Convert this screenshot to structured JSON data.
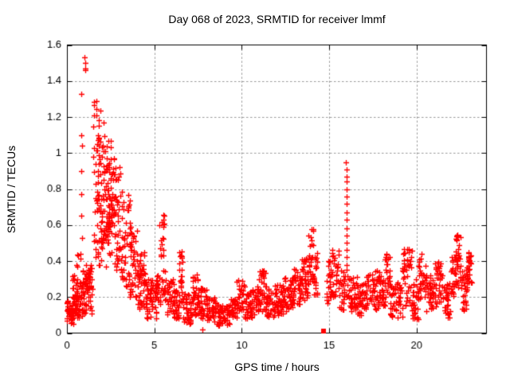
{
  "chart_data": {
    "type": "scatter",
    "title": "Day 068 of 2023, SRMTID for receiver lmmf",
    "xlabel": "GPS time / hours",
    "ylabel": "SRMTID / TECUs",
    "xlim": [
      0,
      24
    ],
    "ylim": [
      0,
      1.6
    ],
    "xticks": {
      "values": [
        0,
        5,
        10,
        15,
        20
      ],
      "labels": [
        "0",
        "5",
        "10",
        "15",
        "20"
      ]
    },
    "yticks": {
      "values": [
        0,
        0.2,
        0.4,
        0.6,
        0.8,
        1.0,
        1.2,
        1.4,
        1.6
      ],
      "labels": [
        "0",
        "0.2",
        "0.4",
        "0.6",
        "0.8",
        "1",
        "1.2",
        "1.4",
        "1.6"
      ]
    },
    "grid": true,
    "legend": "none",
    "colors": {
      "marker": "#ff0000",
      "grid": "#9a9a9a",
      "axis": "#000000",
      "background": "#ffffff"
    },
    "marker": {
      "shape": "plus",
      "size": 7
    },
    "square_point": [
      14.7,
      0.01
    ],
    "low_outlier_point": [
      7.73,
      0.02
    ],
    "spike_columns": {
      "hour08_column": [
        [
          0.83,
          1.33
        ],
        [
          0.8,
          1.1
        ],
        [
          0.85,
          1.04
        ],
        [
          0.82,
          0.9
        ],
        [
          0.84,
          0.77
        ],
        [
          0.81,
          0.65
        ],
        [
          0.86,
          0.53
        ],
        [
          0.79,
          0.44
        ]
      ],
      "max_cluster": [
        [
          1.02,
          1.53
        ],
        [
          1.05,
          1.5
        ],
        [
          1.03,
          1.47
        ],
        [
          1.06,
          1.46
        ]
      ],
      "hour16_spike": [
        [
          15.97,
          0.95
        ],
        [
          16.0,
          0.91
        ],
        [
          15.98,
          0.87
        ],
        [
          16.02,
          0.84
        ],
        [
          15.99,
          0.8
        ],
        [
          16.01,
          0.76
        ],
        [
          15.98,
          0.72
        ],
        [
          16.0,
          0.67
        ],
        [
          16.02,
          0.63
        ],
        [
          15.99,
          0.58
        ],
        [
          16.01,
          0.54
        ],
        [
          15.98,
          0.5
        ],
        [
          16.0,
          0.46
        ],
        [
          16.02,
          0.42
        ],
        [
          15.99,
          0.38
        ],
        [
          16.01,
          0.35
        ]
      ]
    },
    "density_bands_format": [
      "x_start_hours",
      "x_end_hours",
      "y_min_TECUs",
      "y_max_TECUs",
      "n_points"
    ],
    "density_bands": [
      [
        0.0,
        0.35,
        0.05,
        0.18,
        45
      ],
      [
        0.3,
        0.6,
        0.08,
        0.32,
        40
      ],
      [
        0.45,
        0.9,
        0.36,
        0.45,
        6
      ],
      [
        0.55,
        0.95,
        0.08,
        0.28,
        35
      ],
      [
        0.9,
        1.45,
        0.1,
        0.38,
        70
      ],
      [
        1.5,
        1.95,
        0.5,
        1.3,
        55
      ],
      [
        1.95,
        2.35,
        0.5,
        1.18,
        55
      ],
      [
        2.35,
        2.7,
        0.55,
        1.08,
        55
      ],
      [
        1.6,
        2.6,
        0.33,
        0.52,
        18
      ],
      [
        2.7,
        3.1,
        0.35,
        0.95,
        45
      ],
      [
        3.1,
        3.6,
        0.25,
        0.8,
        45
      ],
      [
        3.6,
        4.0,
        0.2,
        0.6,
        40
      ],
      [
        4.0,
        4.5,
        0.12,
        0.45,
        50
      ],
      [
        4.5,
        5.1,
        0.08,
        0.3,
        50
      ],
      [
        5.1,
        5.35,
        0.15,
        0.35,
        20
      ],
      [
        5.3,
        5.6,
        0.2,
        0.66,
        30
      ],
      [
        5.6,
        6.1,
        0.1,
        0.3,
        35
      ],
      [
        6.1,
        6.4,
        0.08,
        0.25,
        30
      ],
      [
        6.4,
        6.65,
        0.15,
        0.47,
        25
      ],
      [
        6.65,
        7.1,
        0.05,
        0.22,
        35
      ],
      [
        7.1,
        7.5,
        0.1,
        0.33,
        35
      ],
      [
        7.5,
        8.0,
        0.08,
        0.25,
        40
      ],
      [
        8.0,
        8.5,
        0.06,
        0.2,
        40
      ],
      [
        8.5,
        9.3,
        0.04,
        0.16,
        55
      ],
      [
        9.3,
        9.7,
        0.08,
        0.2,
        30
      ],
      [
        9.7,
        10.15,
        0.12,
        0.3,
        35
      ],
      [
        10.15,
        10.7,
        0.08,
        0.24,
        40
      ],
      [
        10.7,
        11.0,
        0.1,
        0.26,
        25
      ],
      [
        11.0,
        11.4,
        0.12,
        0.35,
        35
      ],
      [
        11.4,
        11.9,
        0.07,
        0.25,
        35
      ],
      [
        11.9,
        12.4,
        0.1,
        0.28,
        40
      ],
      [
        12.4,
        12.9,
        0.12,
        0.32,
        40
      ],
      [
        12.9,
        13.4,
        0.15,
        0.37,
        40
      ],
      [
        13.4,
        13.8,
        0.18,
        0.42,
        35
      ],
      [
        13.8,
        14.1,
        0.25,
        0.58,
        30
      ],
      [
        14.1,
        14.35,
        0.2,
        0.45,
        20
      ],
      [
        14.85,
        15.15,
        0.15,
        0.42,
        25
      ],
      [
        15.15,
        15.55,
        0.2,
        0.47,
        30
      ],
      [
        15.55,
        15.9,
        0.12,
        0.35,
        25
      ],
      [
        15.9,
        16.1,
        0.2,
        0.35,
        8
      ],
      [
        16.1,
        16.6,
        0.12,
        0.33,
        35
      ],
      [
        16.6,
        17.1,
        0.1,
        0.28,
        40
      ],
      [
        17.1,
        17.9,
        0.13,
        0.35,
        55
      ],
      [
        17.9,
        18.2,
        0.15,
        0.33,
        25
      ],
      [
        18.2,
        18.5,
        0.2,
        0.45,
        25
      ],
      [
        18.5,
        19.2,
        0.08,
        0.28,
        50
      ],
      [
        19.2,
        19.75,
        0.15,
        0.47,
        40
      ],
      [
        19.75,
        20.1,
        0.06,
        0.3,
        30
      ],
      [
        20.1,
        20.55,
        0.18,
        0.45,
        35
      ],
      [
        20.55,
        21.05,
        0.12,
        0.32,
        40
      ],
      [
        21.05,
        21.6,
        0.15,
        0.4,
        40
      ],
      [
        21.6,
        21.95,
        0.08,
        0.28,
        30
      ],
      [
        21.95,
        22.2,
        0.2,
        0.45,
        25
      ],
      [
        22.2,
        22.55,
        0.25,
        0.56,
        35
      ],
      [
        22.55,
        22.85,
        0.12,
        0.35,
        25
      ],
      [
        22.85,
        23.15,
        0.22,
        0.45,
        35
      ]
    ]
  }
}
